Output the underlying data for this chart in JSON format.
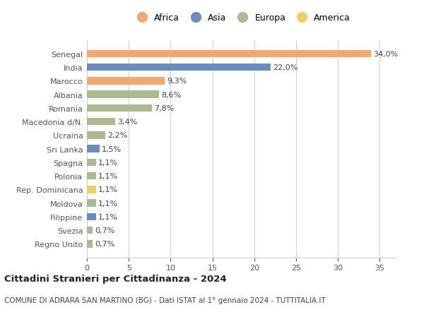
{
  "categories": [
    "Senegal",
    "India",
    "Marocco",
    "Albania",
    "Romania",
    "Macedonia d/N.",
    "Ucraina",
    "Sri Lanka",
    "Spagna",
    "Polonia",
    "Rep. Dominicana",
    "Moldova",
    "Filippine",
    "Svezia",
    "Regno Unito"
  ],
  "values": [
    34.0,
    22.0,
    9.3,
    8.6,
    7.8,
    3.4,
    2.2,
    1.5,
    1.1,
    1.1,
    1.1,
    1.1,
    1.1,
    0.7,
    0.7
  ],
  "labels": [
    "34,0%",
    "22,0%",
    "9,3%",
    "8,6%",
    "7,8%",
    "3,4%",
    "2,2%",
    "1,5%",
    "1,1%",
    "1,1%",
    "1,1%",
    "1,1%",
    "1,1%",
    "0,7%",
    "0,7%"
  ],
  "continents": [
    "Africa",
    "Asia",
    "Africa",
    "Europa",
    "Europa",
    "Europa",
    "Europa",
    "Asia",
    "Europa",
    "Europa",
    "America",
    "Europa",
    "Asia",
    "Europa",
    "Europa"
  ],
  "colors": {
    "Africa": "#F4A870",
    "Asia": "#6B8CBE",
    "Europa": "#AABB90",
    "America": "#F0D060"
  },
  "legend_order": [
    "Africa",
    "Asia",
    "Europa",
    "America"
  ],
  "xlim": [
    0,
    37
  ],
  "xticks": [
    0,
    5,
    10,
    15,
    20,
    25,
    30,
    35
  ],
  "title": "Cittadini Stranieri per Cittadinanza - 2024",
  "subtitle": "COMUNE DI ADRARA SAN MARTINO (BG) - Dati ISTAT al 1° gennaio 2024 - TUTTITALIA.IT",
  "background_color": "#ffffff",
  "grid_color": "#d0d0d0",
  "bar_height": 0.55,
  "label_fontsize": 8.0,
  "tick_fontsize": 8.0,
  "title_fontsize": 9.5,
  "subtitle_fontsize": 7.5,
  "legend_fontsize": 9.0
}
